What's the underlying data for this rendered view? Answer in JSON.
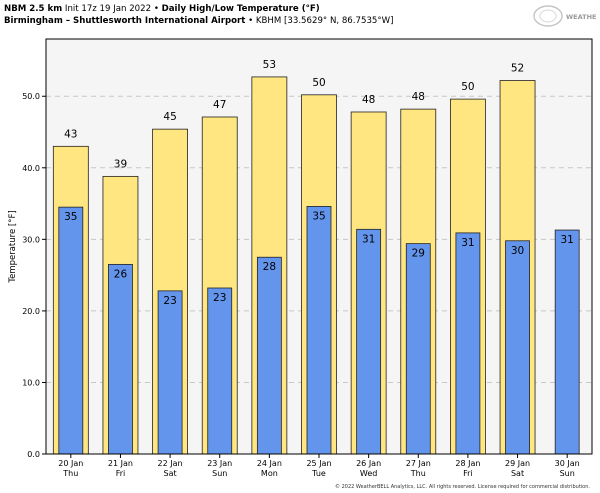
{
  "header": {
    "model": "NBM 2.5 km",
    "init": "Init 17z 19 Jan 2022",
    "bullet": "•",
    "product": "Daily High/Low Temperature (°F)",
    "station_name": "Birmingham – Shuttlesworth International Airport",
    "station_id_coords": "KBHM [33.5629° N, 86.7535°W]"
  },
  "logo": {
    "text": "WEATHERBELL"
  },
  "footer": {
    "copyright": "© 2022 WeatherBELL Analytics, LLC. All rights reserved. License required for commercial distribution."
  },
  "colors": {
    "high_bar": "#ffe680",
    "low_bar": "#6495ed",
    "plot_bg": "#f5f5f5",
    "gridline": "#c8c8c8",
    "bar_edge": "#222222"
  },
  "chart_data": {
    "type": "bar",
    "title": "Daily High/Low Temperature (°F)",
    "ylabel": "Temperature [°F]",
    "ylim": [
      0,
      58
    ],
    "yticks": [
      "0.0",
      "10.0",
      "20.0",
      "30.0",
      "40.0",
      "50.0"
    ],
    "grid": true,
    "categories": [
      {
        "date": "20 Jan",
        "day": "Thu"
      },
      {
        "date": "21 Jan",
        "day": "Fri"
      },
      {
        "date": "22 Jan",
        "day": "Sat"
      },
      {
        "date": "23 Jan",
        "day": "Sun"
      },
      {
        "date": "24 Jan",
        "day": "Mon"
      },
      {
        "date": "25 Jan",
        "day": "Tue"
      },
      {
        "date": "26 Jan",
        "day": "Wed"
      },
      {
        "date": "27 Jan",
        "day": "Thu"
      },
      {
        "date": "28 Jan",
        "day": "Fri"
      },
      {
        "date": "29 Jan",
        "day": "Sat"
      },
      {
        "date": "30 Jan",
        "day": "Sun"
      }
    ],
    "series": [
      {
        "key": "high",
        "values": [
          43,
          38.8,
          45.4,
          47.1,
          52.7,
          50.2,
          47.8,
          48.2,
          49.6,
          52.2,
          null
        ],
        "labels": [
          "43",
          "39",
          "45",
          "47",
          "53",
          "50",
          "48",
          "48",
          "50",
          "52",
          ""
        ]
      },
      {
        "key": "low",
        "values": [
          34.5,
          26.5,
          22.8,
          23.2,
          27.5,
          34.6,
          31.4,
          29.4,
          30.9,
          29.8,
          31.3
        ],
        "labels": [
          "35",
          "26",
          "23",
          "23",
          "28",
          "35",
          "31",
          "29",
          "31",
          "30",
          "31"
        ]
      }
    ]
  }
}
